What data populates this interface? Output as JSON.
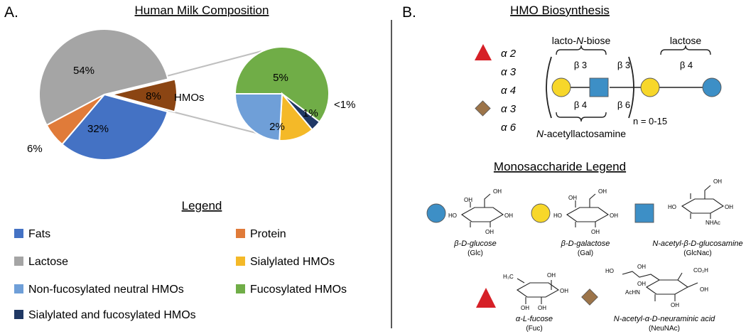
{
  "panel_a": {
    "letter": "A.",
    "title": "Human Milk Composition",
    "main_pie_labels": {
      "lactose": "54%",
      "fats": "32%",
      "hmos_pct": "8%",
      "hmos_name": "HMOs",
      "protein": "6%"
    },
    "zoom_pie_labels": {
      "fucosylated": "5%",
      "non_fuco": "2%",
      "sialylated": "1%",
      "sia_fuc": "<1%"
    },
    "legend_title": "Legend",
    "legend": [
      {
        "label": "Fats",
        "color": "#4472c4"
      },
      {
        "label": "Protein",
        "color": "#e07b39"
      },
      {
        "label": "Lactose",
        "color": "#a5a5a5"
      },
      {
        "label": "Sialylated HMOs",
        "color": "#f4b928"
      },
      {
        "label": "Non-fucosylated neutral HMOs",
        "color": "#6f9fd8"
      },
      {
        "label": "Fucosylated HMOs",
        "color": "#70ad47"
      },
      {
        "label": "Sialylated and fucosylated HMOs",
        "color": "#203864"
      }
    ]
  },
  "chart_data": [
    {
      "type": "pie",
      "categories": [
        "Lactose",
        "HMOs",
        "Fats",
        "Protein"
      ],
      "values": [
        54,
        8,
        32,
        6
      ],
      "colors": [
        "#a5a5a5",
        "#8b4513",
        "#4472c4",
        "#e07b39"
      ],
      "title": "Human Milk Composition"
    },
    {
      "type": "pie",
      "categories": [
        "Fucosylated HMOs",
        "Sialylated and fucosylated HMOs",
        "Sialylated HMOs",
        "Non-fucosylated neutral HMOs"
      ],
      "values": [
        5,
        0.3,
        1,
        2
      ],
      "colors": [
        "#70ad47",
        "#203864",
        "#f4b928",
        "#6f9fd8"
      ]
    }
  ],
  "panel_b": {
    "letter": "B.",
    "title": "HMO Biosynthesis",
    "fucose_linkages": [
      "α 2",
      "α 3",
      "α 4"
    ],
    "sialic_linkages": [
      "α 3",
      "α 6"
    ],
    "lacto_n_biose_prefix": "lacto-",
    "lacto_n_biose_italic": "N",
    "lacto_n_biose_suffix": "-biose",
    "lactose_label": "lactose",
    "beta3_top": "β 3",
    "beta3_right": "β 3",
    "beta4_right": "β 4",
    "beta4_bottom": "β 4",
    "beta6_right": "β 6",
    "repeat_label": "n = 0-15",
    "n_acetyl_italic": "N",
    "n_acetyl_suffix": "-acetyllactosamine",
    "mono_legend_title": "Monosaccharide Legend",
    "colors": {
      "glucose": "#3d8fc6",
      "galactose": "#f7d72a",
      "glcnac": "#3d8fc6",
      "fucose": "#d62027",
      "neunac": "#9c7449"
    },
    "monosaccharides": {
      "glucose": {
        "name": "β-D-glucose",
        "abbr": "(Glc)"
      },
      "galactose": {
        "name": "β-D-galactose",
        "abbr": "(Gal)"
      },
      "glcnac": {
        "name": "N-acetyl-β-D-glucosamine",
        "abbr": "(GlcNac)"
      },
      "fucose": {
        "name": "α-L-fucose",
        "abbr": "(Fuc)"
      },
      "neunac": {
        "name": "N-acetyl-α-D-neuraminic acid",
        "abbr": "(NeuNAc)"
      }
    },
    "struct_labels": {
      "oh": "OH",
      "nhac": "NHAc",
      "h3c": "H₃C",
      "co2h": "CO₂H",
      "ho": "HO",
      "achn": "AcHN"
    }
  }
}
